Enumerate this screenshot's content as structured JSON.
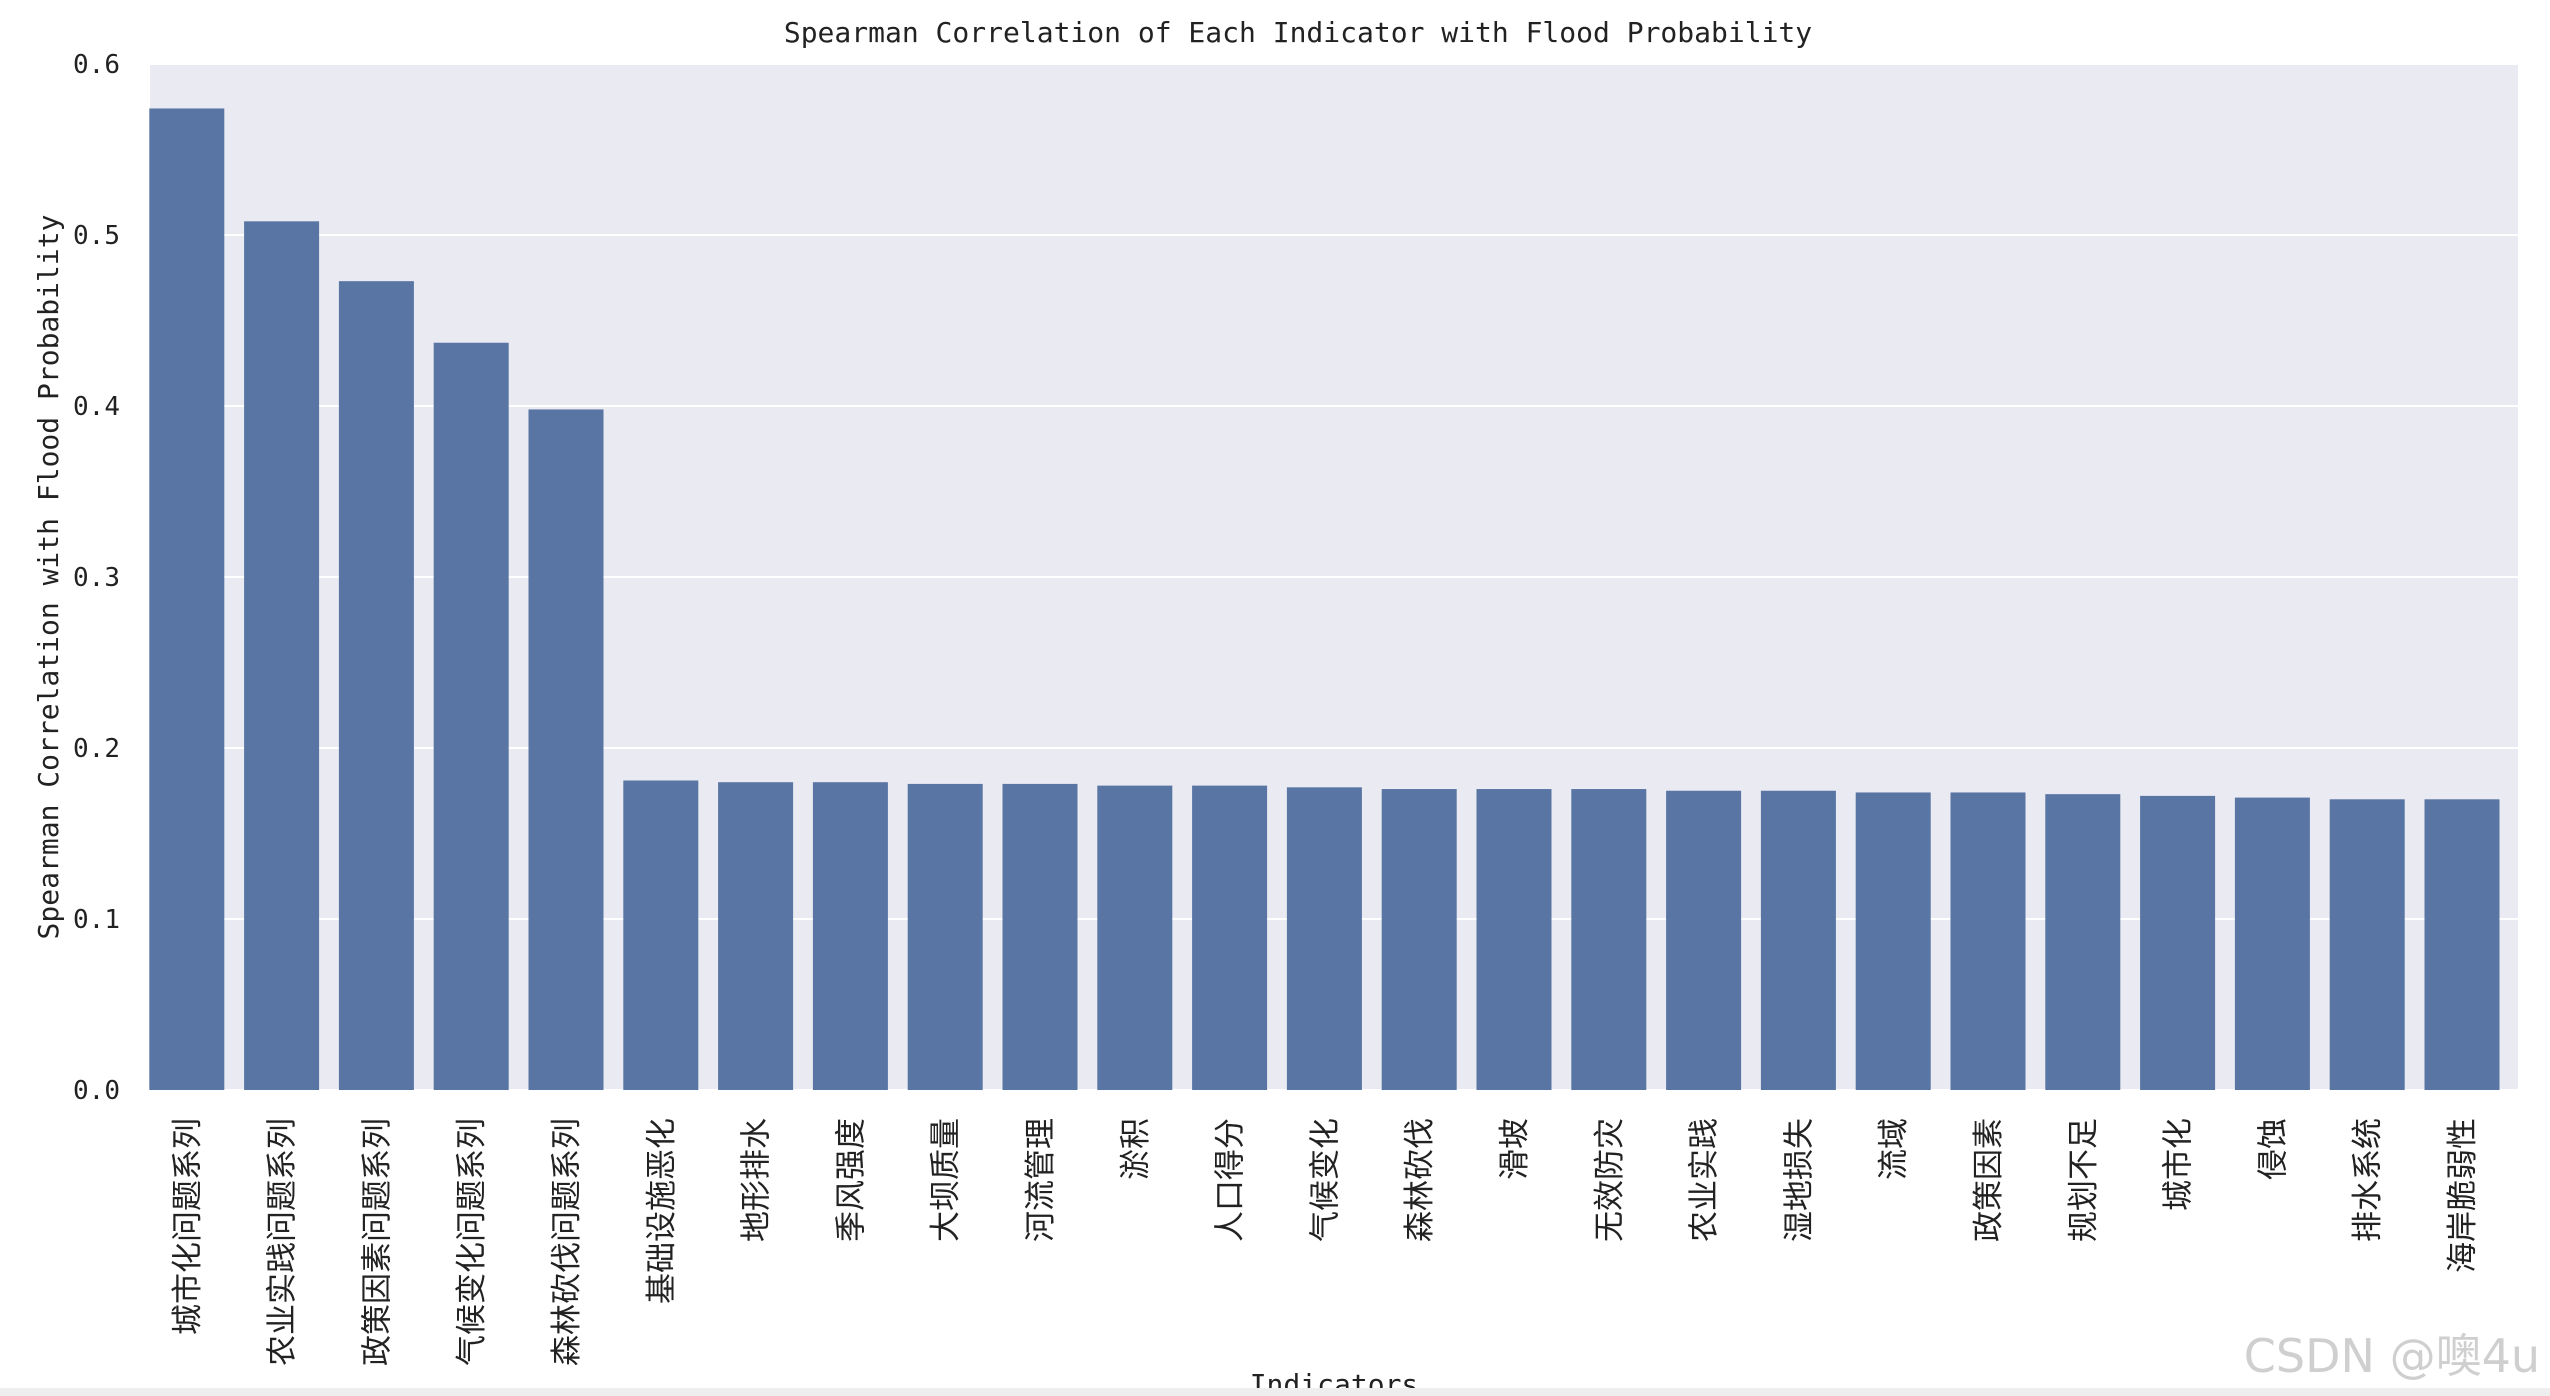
{
  "chart_data": {
    "type": "bar",
    "title": "Spearman Correlation of Each Indicator with Flood Probability",
    "xlabel": "Indicators",
    "ylabel": "Spearman Correlation with Flood Probability",
    "ylim": [
      0,
      0.6
    ],
    "yticks": [
      "0.0",
      "0.1",
      "0.2",
      "0.3",
      "0.4",
      "0.5",
      "0.6"
    ],
    "grid": true,
    "color": "#5975a4",
    "background": "#eaeaf2",
    "categories": [
      "城市化问题系列",
      "农业实践问题系列",
      "政策因素问题系列",
      "气候变化问题系列",
      "森林砍伐问题系列",
      "基础设施恶化",
      "地形排水",
      "季风强度",
      "大坝质量",
      "河流管理",
      "淤积",
      "人口得分",
      "气候变化",
      "森林砍伐",
      "滑坡",
      "无效防灾",
      "农业实践",
      "湿地损失",
      "流域",
      "政策因素",
      "规划不足",
      "城市化",
      "侵蚀",
      "排水系统",
      "海岸脆弱性"
    ],
    "values": [
      0.574,
      0.508,
      0.473,
      0.437,
      0.398,
      0.181,
      0.18,
      0.18,
      0.179,
      0.179,
      0.178,
      0.178,
      0.177,
      0.176,
      0.176,
      0.176,
      0.175,
      0.175,
      0.174,
      0.174,
      0.173,
      0.172,
      0.171,
      0.17,
      0.17
    ]
  },
  "watermark": "CSDN @噢4u"
}
